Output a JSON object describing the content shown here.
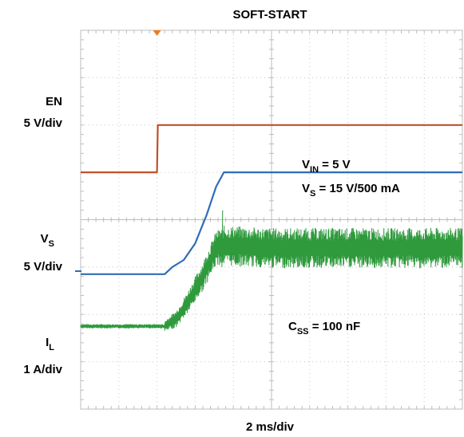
{
  "chart_data": {
    "type": "line",
    "title": "SOFT-START",
    "xlabel": "2 ms/div",
    "x_divisions": 10,
    "y_divisions": 8,
    "time_per_div_ms": 2,
    "trigger_marker_div": 2,
    "channels": [
      {
        "name": "EN",
        "scale": "5 V/div",
        "color": "#c0502a",
        "points": [
          [
            0,
            5.0
          ],
          [
            2.0,
            5.0
          ],
          [
            2.02,
            6.0
          ],
          [
            10,
            6.0
          ]
        ]
      },
      {
        "name": "V",
        "sub": "S",
        "scale": "5 V/div",
        "color": "#2f6db5",
        "points": [
          [
            0,
            2.85
          ],
          [
            2.2,
            2.85
          ],
          [
            2.4,
            3.0
          ],
          [
            2.7,
            3.15
          ],
          [
            3.0,
            3.5
          ],
          [
            3.3,
            4.1
          ],
          [
            3.55,
            4.7
          ],
          [
            3.75,
            5.0
          ],
          [
            10,
            5.0
          ]
        ]
      },
      {
        "name": "I",
        "sub": "L",
        "scale": "1 A/div",
        "color": "#2e9a3c",
        "noisy": true,
        "points": [
          [
            0,
            1.75
          ],
          [
            2.2,
            1.75
          ],
          [
            2.5,
            1.9
          ],
          [
            2.8,
            2.25
          ],
          [
            3.2,
            2.8
          ],
          [
            3.55,
            3.4
          ],
          [
            3.75,
            3.45
          ],
          [
            5.0,
            3.4
          ],
          [
            10,
            3.4
          ]
        ]
      }
    ],
    "annotations": {
      "vin": {
        "main": "V",
        "sub": "IN",
        "rest": " = 5 V"
      },
      "vs": {
        "main": "V",
        "sub": "S",
        "rest": " = 15 V/500 mA"
      },
      "css": {
        "main": "C",
        "sub": "SS",
        "rest": " = 100 nF"
      }
    }
  }
}
